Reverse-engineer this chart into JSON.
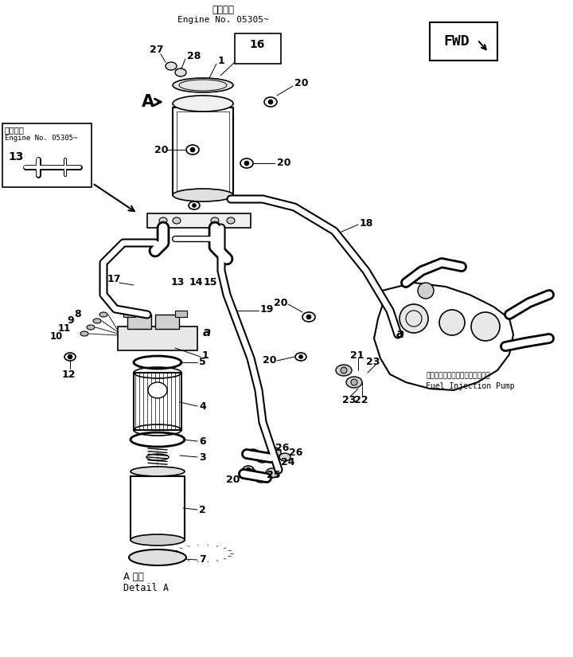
{
  "title_jp": "適用号機",
  "title_en": "Engine No. 05305~",
  "fwd_text": "FWD",
  "detail_a_jp": "A 詳細",
  "detail_a_en": "Detail A",
  "fuel_pump_jp": "フェエルインジェクションポンプ",
  "fuel_pump_en": "Fuel Injection Pump",
  "bg_color": "#ffffff",
  "line_color": "#000000"
}
